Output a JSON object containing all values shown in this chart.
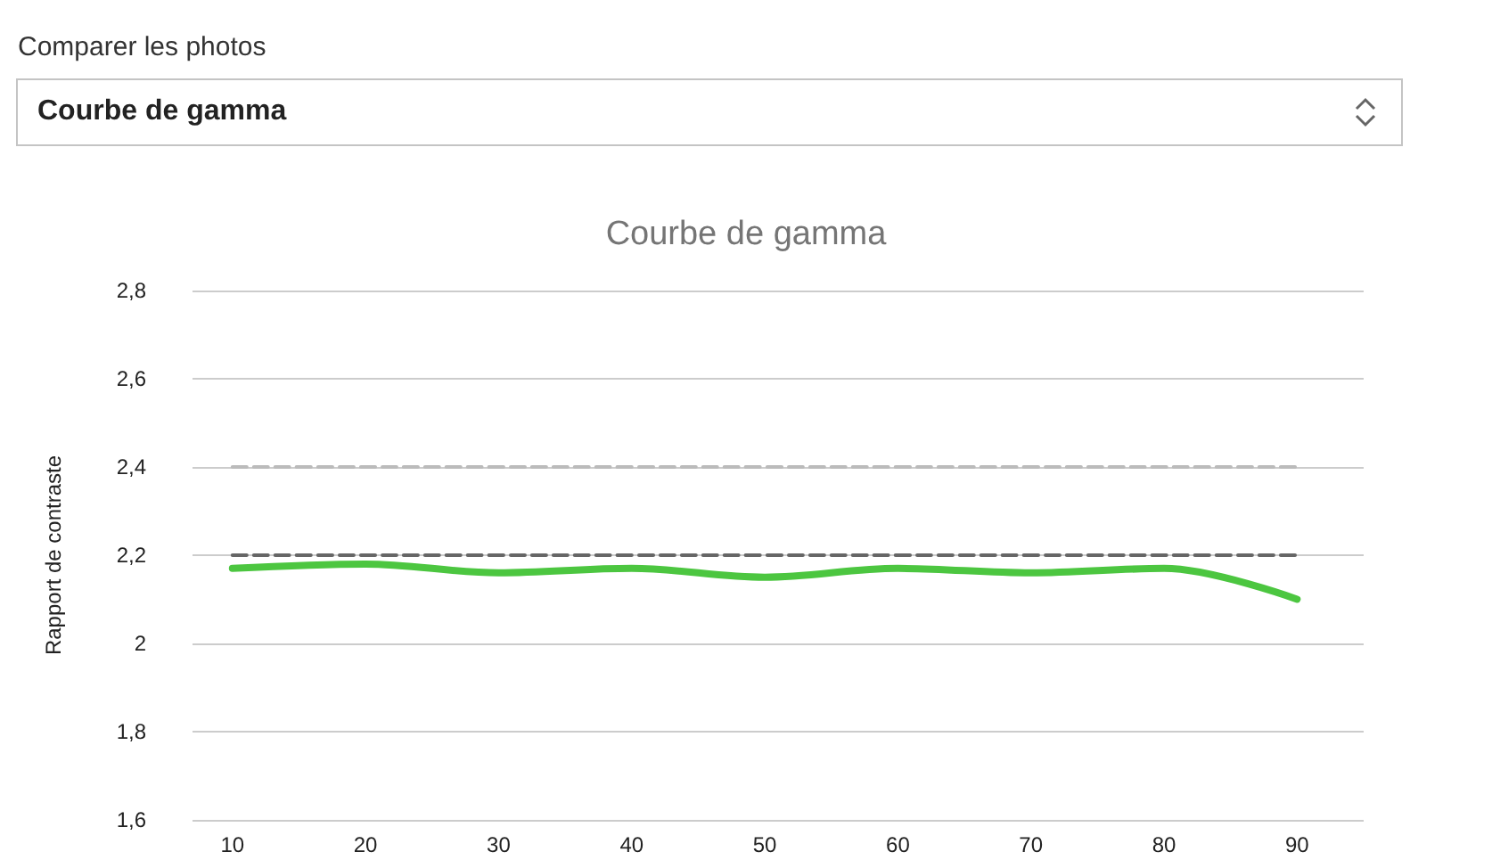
{
  "chart_data": {
    "type": "line",
    "title": "Courbe de gamma",
    "ylabel": "Rapport de contraste",
    "annotations": [
      "Comparer les photos",
      "Courbe de gamma"
    ],
    "x": [
      10,
      20,
      30,
      40,
      50,
      60,
      70,
      80,
      90
    ],
    "series": [
      {
        "color": "#bbbbbb",
        "values": [
          2.4,
          2.4,
          2.4,
          2.4,
          2.4,
          2.4,
          2.4,
          2.4,
          2.4
        ],
        "line_style": "dashed"
      },
      {
        "color": "#666666",
        "values": [
          2.2,
          2.2,
          2.2,
          2.2,
          2.2,
          2.2,
          2.2,
          2.2,
          2.2
        ],
        "line_style": "dashed"
      },
      {
        "color": "#4cc640",
        "values": [
          2.17,
          2.18,
          2.16,
          2.17,
          2.15,
          2.17,
          2.16,
          2.17,
          2.1
        ],
        "line_style": "solid"
      }
    ],
    "xlim": [
      7,
      95
    ],
    "xticks": [
      10,
      20,
      30,
      40,
      50,
      60,
      70,
      80,
      90
    ],
    "ylim": [
      1.6,
      2.8
    ],
    "yticks": [
      {
        "value": 1.6,
        "label": "1,6"
      },
      {
        "value": 1.8,
        "label": "1,8"
      },
      2,
      {
        "value": 2.2,
        "label": "2,2"
      },
      {
        "value": 2.4,
        "label": "2,4"
      },
      {
        "value": 2.6,
        "label": "2,6"
      },
      {
        "value": 2.8,
        "label": "2,8"
      }
    ],
    "grid": "y",
    "marker": "none"
  }
}
